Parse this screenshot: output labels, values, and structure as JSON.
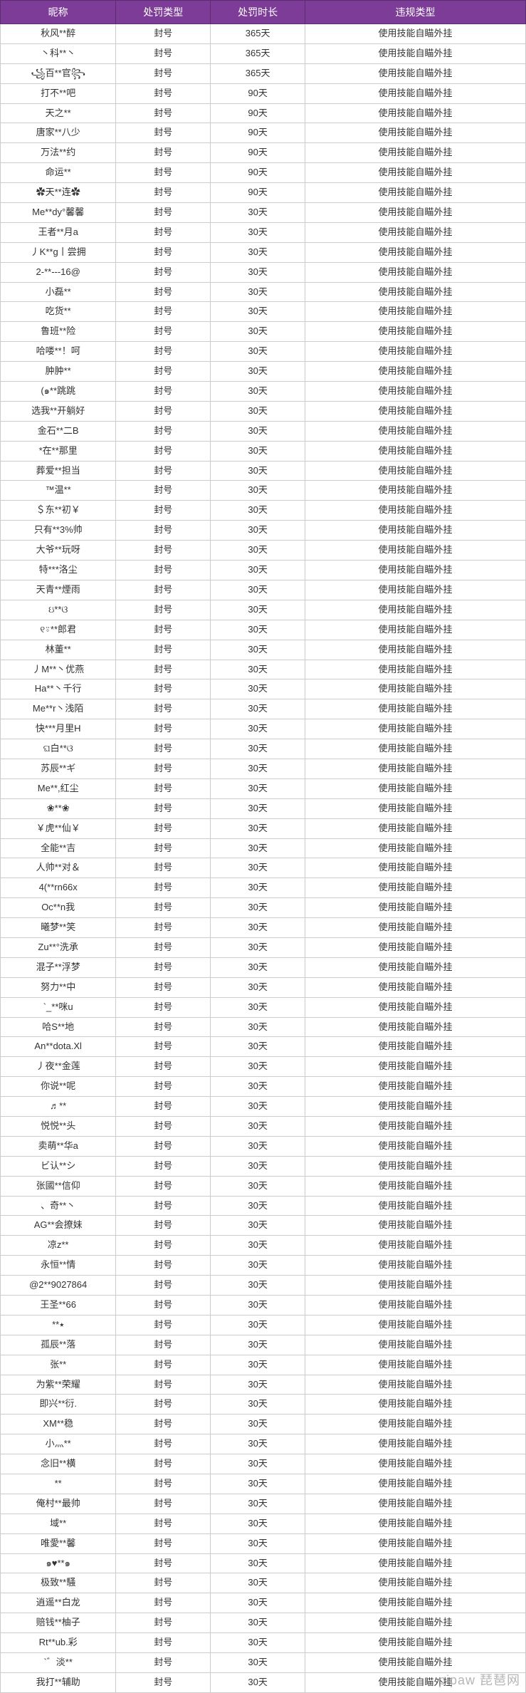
{
  "table": {
    "header_bg": "#7d3c98",
    "header_fg": "#ffffff",
    "border_color": "#cccccc",
    "columns": [
      "昵称",
      "处罚类型",
      "处罚时长",
      "违规类型"
    ],
    "rows": [
      [
        "秋风**醉",
        "封号",
        "365天",
        "使用技能自瞄外挂"
      ],
      [
        "丶科**丶",
        "封号",
        "365天",
        "使用技能自瞄外挂"
      ],
      [
        "꧁百**官꧂",
        "封号",
        "365天",
        "使用技能自瞄外挂"
      ],
      [
        "打不**吧",
        "封号",
        "90天",
        "使用技能自瞄外挂"
      ],
      [
        "天之**",
        "封号",
        "90天",
        "使用技能自瞄外挂"
      ],
      [
        "唐家**八少",
        "封号",
        "90天",
        "使用技能自瞄外挂"
      ],
      [
        "万法**约",
        "封号",
        "90天",
        "使用技能自瞄外挂"
      ],
      [
        "命运**",
        "封号",
        "90天",
        "使用技能自瞄外挂"
      ],
      [
        "✿天**连✿",
        "封号",
        "90天",
        "使用技能自瞄外挂"
      ],
      [
        "Me**dy°馨馨",
        "封号",
        "30天",
        "使用技能自瞄外挂"
      ],
      [
        "王者**月a",
        "封号",
        "30天",
        "使用技能自瞄外挂"
      ],
      [
        "丿K**g丨尝拥",
        "封号",
        "30天",
        "使用技能自瞄外挂"
      ],
      [
        "2-**---16@",
        "封号",
        "30天",
        "使用技能自瞄外挂"
      ],
      [
        "小磊**",
        "封号",
        "30天",
        "使用技能自瞄外挂"
      ],
      [
        "吃货**",
        "封号",
        "30天",
        "使用技能自瞄外挂"
      ],
      [
        "鲁班**险",
        "封号",
        "30天",
        "使用技能自瞄外挂"
      ],
      [
        "哈喽**！呵",
        "封号",
        "30天",
        "使用技能自瞄外挂"
      ],
      [
        "肿肿**",
        "封号",
        "30天",
        "使用技能自瞄外挂"
      ],
      [
        "(๑**跳跳",
        "封号",
        "30天",
        "使用技能自瞄外挂"
      ],
      [
        "选我**开躺好",
        "封号",
        "30天",
        "使用技能自瞄外挂"
      ],
      [
        "金石**二B",
        "封号",
        "30天",
        "使用技能自瞄外挂"
      ],
      [
        "*在**那里",
        "封号",
        "30天",
        "使用技能自瞄外挂"
      ],
      [
        "葬爱**担当",
        "封号",
        "30天",
        "使用技能自瞄外挂"
      ],
      [
        "™温**",
        "封号",
        "30天",
        "使用技能自瞄外挂"
      ],
      [
        "＄东**初￥",
        "封号",
        "30天",
        "使用技能自瞄外挂"
      ],
      [
        "只有**3%帅",
        "封号",
        "30天",
        "使用技能自瞄外挂"
      ],
      [
        "大爷**玩呀",
        "封号",
        "30天",
        "使用技能自瞄外挂"
      ],
      [
        "特***洛尘",
        "封号",
        "30天",
        "使用技能自瞄外挂"
      ],
      [
        "天青**煙雨",
        "封号",
        "30天",
        "使用技能自瞄外挂"
      ],
      [
        "ઇ**ଓ",
        "封号",
        "30天",
        "使用技能自瞄外挂"
      ],
      [
        "୧⍤**郎君",
        "封号",
        "30天",
        "使用技能自瞄外挂"
      ],
      [
        "林董**",
        "封号",
        "30天",
        "使用技能自瞄外挂"
      ],
      [
        "丿M**丶优燕",
        "封号",
        "30天",
        "使用技能自瞄外挂"
      ],
      [
        "Ha**丶千行",
        "封号",
        "30天",
        "使用技能自瞄外挂"
      ],
      [
        "Me**r丶浅陌",
        "封号",
        "30天",
        "使用技能自瞄外挂"
      ],
      [
        "快***月里H",
        "封号",
        "30天",
        "使用技能自瞄外挂"
      ],
      [
        "ଘ白**ଓ",
        "封号",
        "30天",
        "使用技能自瞄外挂"
      ],
      [
        "苏辰**ギ",
        "封号",
        "30天",
        "使用技能自瞄外挂"
      ],
      [
        "Me**,红尘",
        "封号",
        "30天",
        "使用技能自瞄外挂"
      ],
      [
        "❀**❀",
        "封号",
        "30天",
        "使用技能自瞄外挂"
      ],
      [
        "￥虎**仙￥",
        "封号",
        "30天",
        "使用技能自瞄外挂"
      ],
      [
        "全能**吉",
        "封号",
        "30天",
        "使用技能自瞄外挂"
      ],
      [
        "人帅**对＆",
        "封号",
        "30天",
        "使用技能自瞄外挂"
      ],
      [
        "4(**rn66x",
        "封号",
        "30天",
        "使用技能自瞄外挂"
      ],
      [
        "Oc**n我",
        "封号",
        "30天",
        "使用技能自瞄外挂"
      ],
      [
        "曦梦**笑",
        "封号",
        "30天",
        "使用技能自瞄外挂"
      ],
      [
        "Zu**°洗承",
        "封号",
        "30天",
        "使用技能自瞄外挂"
      ],
      [
        "混子**浮梦",
        "封号",
        "30天",
        "使用技能自瞄外挂"
      ],
      [
        "努力**中",
        "封号",
        "30天",
        "使用技能自瞄外挂"
      ],
      [
        "`_**咪u",
        "封号",
        "30天",
        "使用技能自瞄外挂"
      ],
      [
        "哈S**地",
        "封号",
        "30天",
        "使用技能自瞄外挂"
      ],
      [
        "An**dota.Xl",
        "封号",
        "30天",
        "使用技能自瞄外挂"
      ],
      [
        "丿夜**金莲",
        "封号",
        "30天",
        "使用技能自瞄外挂"
      ],
      [
        "你说**呢",
        "封号",
        "30天",
        "使用技能自瞄外挂"
      ],
      [
        "♬**",
        "封号",
        "30天",
        "使用技能自瞄外挂"
      ],
      [
        "悦悦**头",
        "封号",
        "30天",
        "使用技能自瞄外挂"
      ],
      [
        "卖萌**华a",
        "封号",
        "30天",
        "使用技能自瞄外挂"
      ],
      [
        "ビ认**シ",
        "封号",
        "30天",
        "使用技能自瞄外挂"
      ],
      [
        "张國**信仰",
        "封号",
        "30天",
        "使用技能自瞄外挂"
      ],
      [
        "、奇**丶",
        "封号",
        "30天",
        "使用技能自瞄外挂"
      ],
      [
        "AG**会撩妹",
        "封号",
        "30天",
        "使用技能自瞄外挂"
      ],
      [
        "凉z**",
        "封号",
        "30天",
        "使用技能自瞄外挂"
      ],
      [
        "永恒**情",
        "封号",
        "30天",
        "使用技能自瞄外挂"
      ],
      [
        "@2**9027864",
        "封号",
        "30天",
        "使用技能自瞄外挂"
      ],
      [
        "王圣**66",
        "封号",
        "30天",
        "使用技能自瞄外挂"
      ],
      [
        "**٭",
        "封号",
        "30天",
        "使用技能自瞄外挂"
      ],
      [
        "孤辰**落",
        "封号",
        "30天",
        "使用技能自瞄外挂"
      ],
      [
        "张**",
        "封号",
        "30天",
        "使用技能自瞄外挂"
      ],
      [
        "为紫**荣耀",
        "封号",
        "30天",
        "使用技能自瞄外挂"
      ],
      [
        "即兴**衍.",
        "封号",
        "30天",
        "使用技能自瞄外挂"
      ],
      [
        "XM**稳",
        "封号",
        "30天",
        "使用技能自瞄外挂"
      ],
      [
        "小灬**",
        "封号",
        "30天",
        "使用技能自瞄外挂"
      ],
      [
        "念旧**横",
        "封号",
        "30天",
        "使用技能自瞄外挂"
      ],
      [
        "**",
        "封号",
        "30天",
        "使用技能自瞄外挂"
      ],
      [
        "俺村**最帅",
        "封号",
        "30天",
        "使用技能自瞄外挂"
      ],
      [
        "域**",
        "封号",
        "30天",
        "使用技能自瞄外挂"
      ],
      [
        "唯愛**馨",
        "封号",
        "30天",
        "使用技能自瞄外挂"
      ],
      [
        "๑♥**๑",
        "封号",
        "30天",
        "使用技能自瞄外挂"
      ],
      [
        "极致**騒",
        "封号",
        "30天",
        "使用技能自瞄外挂"
      ],
      [
        "逍遥**白龙",
        "封号",
        "30天",
        "使用技能自瞄外挂"
      ],
      [
        "赔钱**柚子",
        "封号",
        "30天",
        "使用技能自瞄外挂"
      ],
      [
        "Rt**ub.彩",
        "封号",
        "30天",
        "使用技能自瞄外挂"
      ],
      [
        "`゛淡**",
        "封号",
        "30天",
        "使用技能自瞄外挂"
      ],
      [
        "我打**辅助",
        "封号",
        "30天",
        "使用技能自瞄外挂"
      ]
    ]
  },
  "watermark": "pipaw 琵琶网"
}
